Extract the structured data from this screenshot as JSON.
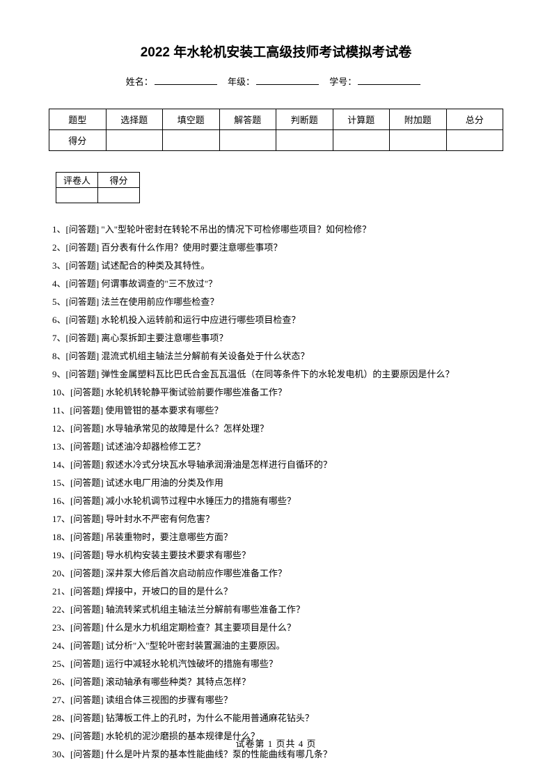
{
  "title": "2022 年水轮机安装工高级技师考试模拟考试卷",
  "info": {
    "name_label": "姓名：",
    "grade_label": "年级：",
    "id_label": "学号："
  },
  "score_table": {
    "headers": [
      "题型",
      "选择题",
      "填空题",
      "解答题",
      "判断题",
      "计算题",
      "附加题",
      "总分"
    ],
    "row_label": "得分"
  },
  "grader_table": {
    "col1": "评卷人",
    "col2": "得分"
  },
  "question_prefix": "[问答题]",
  "questions": [
    "\"入\"型轮叶密封在转轮不吊出的情况下可检修哪些项目？如何检修？",
    "百分表有什么作用？使用时要注意哪些事项？",
    "试述配合的种类及其特性。",
    "何谓事故调查的\"三不放过\"？",
    "法兰在使用前应作哪些检查？",
    "水轮机投入运转前和运行中应进行哪些项目检查？",
    "离心泵拆卸主要注意哪些事项？",
    "混流式机组主轴法兰分解前有关设备处于什么状态？",
    "弹性金属塑料瓦比巴氏合金瓦瓦温低（在同等条件下的水轮发电机）的主要原因是什么？",
    "水轮机转轮静平衡试验前要作哪些准备工作？",
    "使用管钳的基本要求有哪些？",
    "水导轴承常见的故障是什么？怎样处理？",
    "试述油冷却器检修工艺？",
    "叙述水冷式分块瓦水导轴承润滑油是怎样进行自循环的？",
    "试述水电厂用油的分类及作用",
    "减小水轮机调节过程中水锤压力的措施有哪些？",
    "导叶封水不严密有何危害？",
    "吊装重物时，要注意哪些方面？",
    "导水机构安装主要技术要求有哪些？",
    "深井泵大修后首次启动前应作哪些准备工作？",
    "焊接中，开坡口的目的是什么？",
    "轴流转桨式机组主轴法兰分解前有哪些准备工作？",
    "什么是水力机组定期检查？其主要项目是什么？",
    "试分析\"入\"型轮叶密封装置漏油的主要原因。",
    "运行中减轻水轮机汽蚀破坏的措施有哪些？",
    "滚动轴承有哪些种类？其特点怎样？",
    "读组合体三视图的步骤有哪些？",
    "钻薄板工件上的孔时，为什么不能用普通麻花钻头？",
    "水轮机的泥沙磨损的基本规律是什么？",
    "什么是叶片泵的基本性能曲线？泵的性能曲线有哪几条？"
  ],
  "footer": {
    "label": "试卷第",
    "page": "1",
    "of_label": "页共",
    "total": "4",
    "page_suffix": "页"
  }
}
